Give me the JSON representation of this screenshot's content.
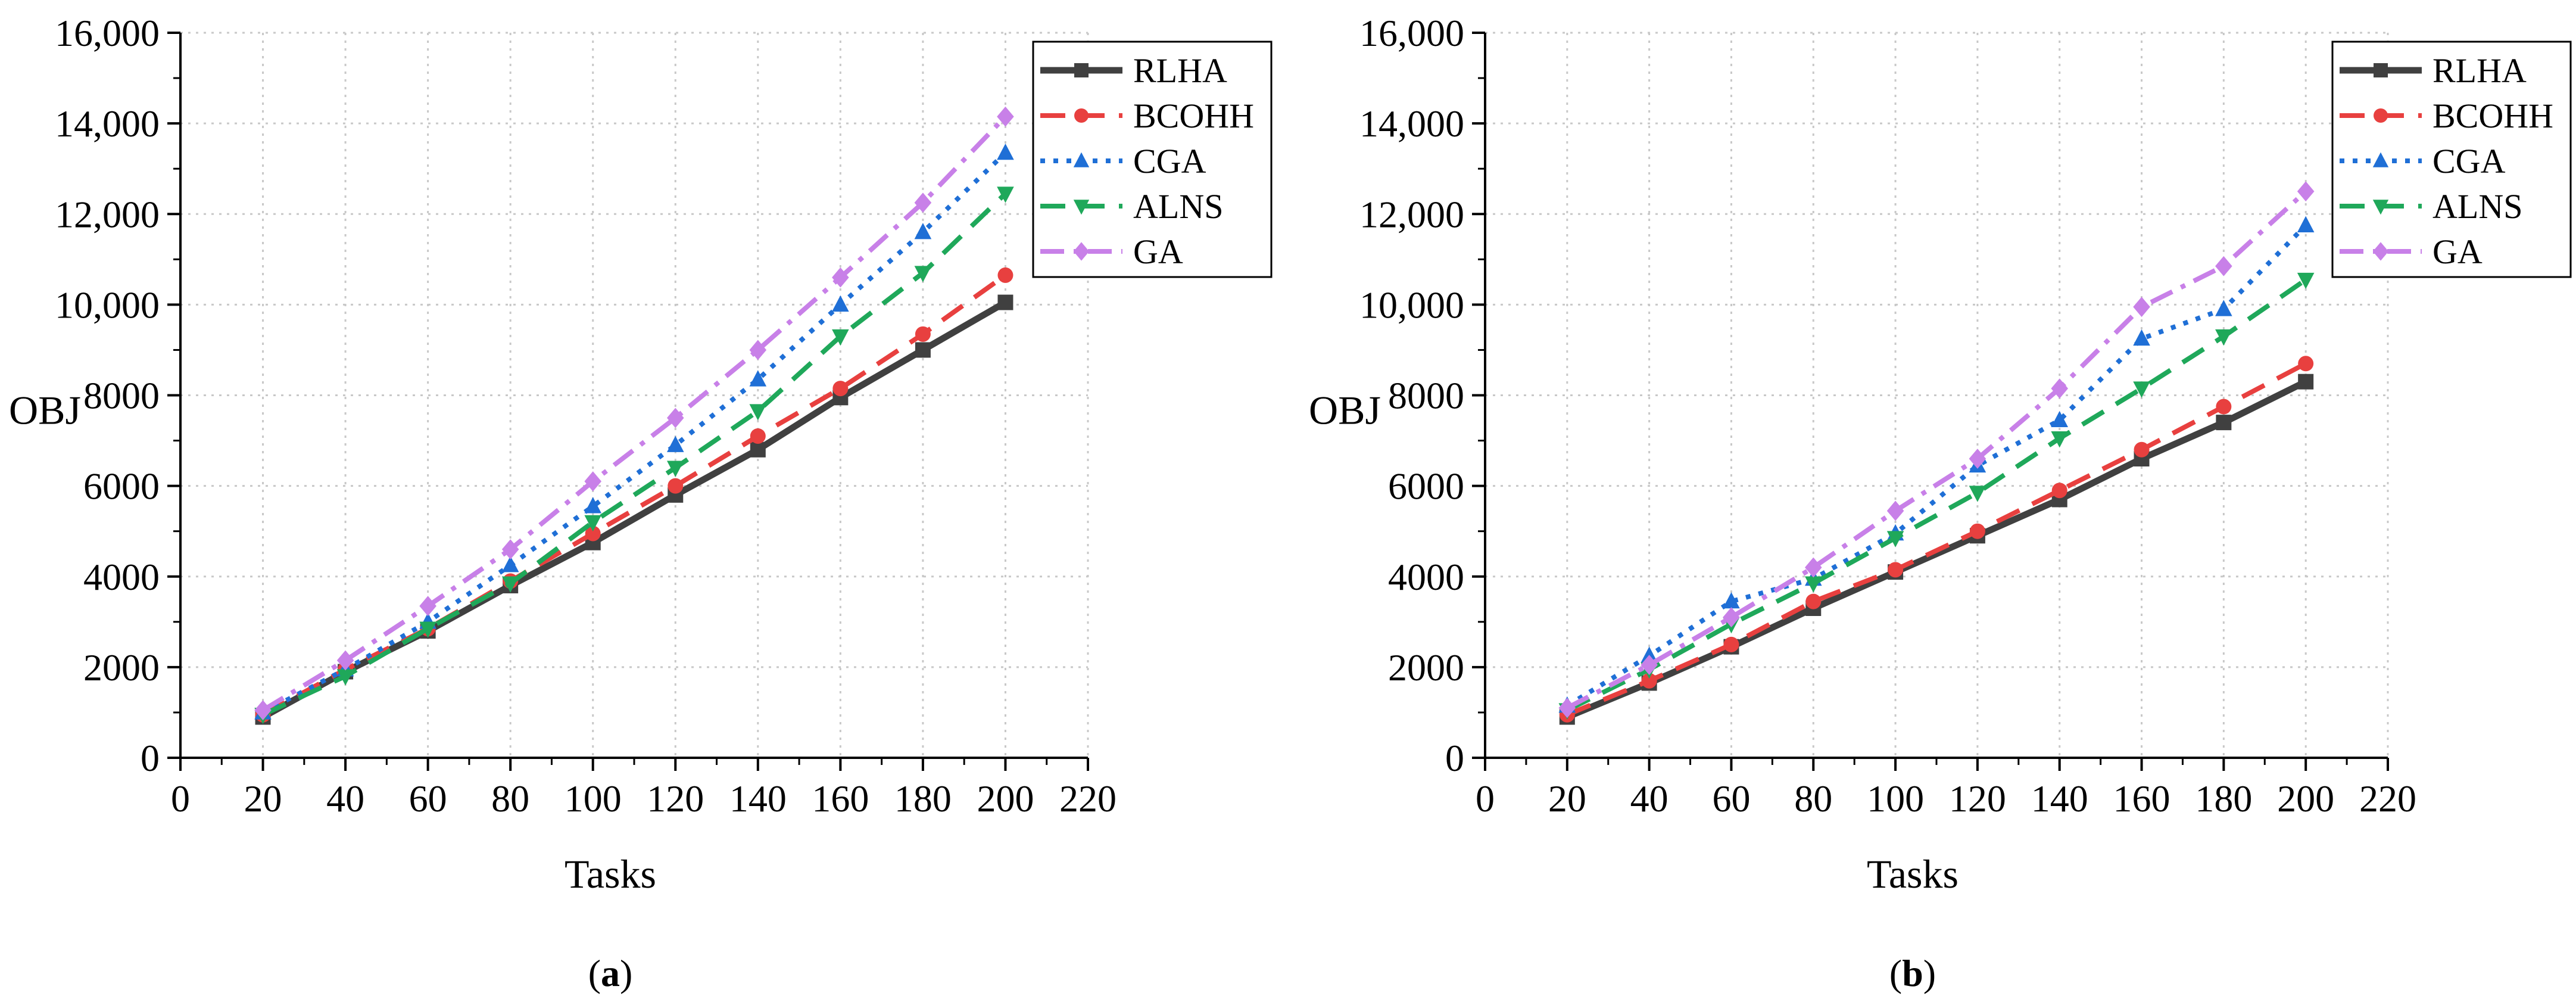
{
  "chart_data": [
    {
      "type": "line",
      "panel_label": "a",
      "caption_open": "(",
      "caption_close": ")",
      "xlabel": "Tasks",
      "ylabel": "OBJ",
      "xlim": [
        0,
        220
      ],
      "ylim": [
        0,
        16000
      ],
      "xticks": [
        0,
        20,
        40,
        60,
        80,
        100,
        120,
        140,
        160,
        180,
        200,
        220
      ],
      "xtick_labels": [
        "0",
        "20",
        "40",
        "60",
        "80",
        "100",
        "120",
        "140",
        "160",
        "180",
        "200",
        "220"
      ],
      "yticks": [
        0,
        2000,
        4000,
        6000,
        8000,
        10000,
        12000,
        14000,
        16000
      ],
      "ytick_labels": [
        "0",
        "2000",
        "4000",
        "6000",
        "8000",
        "10,000",
        "12,000",
        "14,000",
        "16,000"
      ],
      "grid": true,
      "legend_position": "top-right",
      "x": [
        20,
        40,
        60,
        80,
        100,
        120,
        140,
        160,
        180,
        200
      ],
      "series": [
        {
          "name": "RLHA",
          "color": "#404040",
          "style": "solid",
          "marker": "square",
          "values": [
            900,
            1900,
            2800,
            3800,
            4750,
            5800,
            6800,
            7950,
            9000,
            10050
          ]
        },
        {
          "name": "BCOHH",
          "color": "#e8403f",
          "style": "dash",
          "marker": "circle",
          "values": [
            950,
            1950,
            2850,
            3900,
            4950,
            6000,
            7100,
            8150,
            9350,
            10650
          ]
        },
        {
          "name": "CGA",
          "color": "#1f6fd6",
          "style": "dot",
          "marker": "triangle-up",
          "values": [
            1000,
            1950,
            3000,
            4250,
            5550,
            6900,
            8350,
            10000,
            11600,
            13350
          ]
        },
        {
          "name": "ALNS",
          "color": "#1fa85a",
          "style": "dash",
          "marker": "triangle-down",
          "values": [
            950,
            1800,
            2850,
            3850,
            5200,
            6400,
            7650,
            9300,
            10700,
            12450
          ]
        },
        {
          "name": "GA",
          "color": "#c880e8",
          "style": "dashdot",
          "marker": "diamond",
          "values": [
            1050,
            2150,
            3350,
            4600,
            6100,
            7500,
            9000,
            10600,
            12250,
            14150
          ]
        }
      ]
    },
    {
      "type": "line",
      "panel_label": "b",
      "caption_open": "(",
      "caption_close": ")",
      "xlabel": "Tasks",
      "ylabel": "OBJ",
      "xlim": [
        0,
        220
      ],
      "ylim": [
        0,
        16000
      ],
      "xticks": [
        0,
        20,
        40,
        60,
        80,
        100,
        120,
        140,
        160,
        180,
        200,
        220
      ],
      "xtick_labels": [
        "0",
        "20",
        "40",
        "60",
        "80",
        "100",
        "120",
        "140",
        "160",
        "180",
        "200",
        "220"
      ],
      "yticks": [
        0,
        2000,
        4000,
        6000,
        8000,
        10000,
        12000,
        14000,
        16000
      ],
      "ytick_labels": [
        "0",
        "2000",
        "4000",
        "6000",
        "8000",
        "10,000",
        "12,000",
        "14,000",
        "16,000"
      ],
      "grid": true,
      "legend_position": "top-right",
      "x": [
        20,
        40,
        60,
        80,
        100,
        120,
        140,
        160,
        180,
        200
      ],
      "series": [
        {
          "name": "RLHA",
          "color": "#404040",
          "style": "solid",
          "marker": "square",
          "values": [
            900,
            1650,
            2450,
            3300,
            4100,
            4900,
            5700,
            6600,
            7400,
            8300
          ]
        },
        {
          "name": "BCOHH",
          "color": "#e8403f",
          "style": "dash",
          "marker": "circle",
          "values": [
            950,
            1700,
            2500,
            3450,
            4150,
            5000,
            5900,
            6800,
            7750,
            8700
          ]
        },
        {
          "name": "CGA",
          "color": "#1f6fd6",
          "style": "dot",
          "marker": "triangle-up",
          "values": [
            1150,
            2250,
            3450,
            3950,
            4950,
            6450,
            7450,
            9250,
            9900,
            11750
          ]
        },
        {
          "name": "ALNS",
          "color": "#1fa85a",
          "style": "dash",
          "marker": "triangle-down",
          "values": [
            1050,
            1950,
            2950,
            3850,
            4850,
            5850,
            7050,
            8150,
            9300,
            10550
          ]
        },
        {
          "name": "GA",
          "color": "#c880e8",
          "style": "dashdot",
          "marker": "diamond",
          "values": [
            1100,
            2050,
            3100,
            4200,
            5450,
            6600,
            8150,
            9950,
            10850,
            12500
          ]
        }
      ]
    }
  ]
}
